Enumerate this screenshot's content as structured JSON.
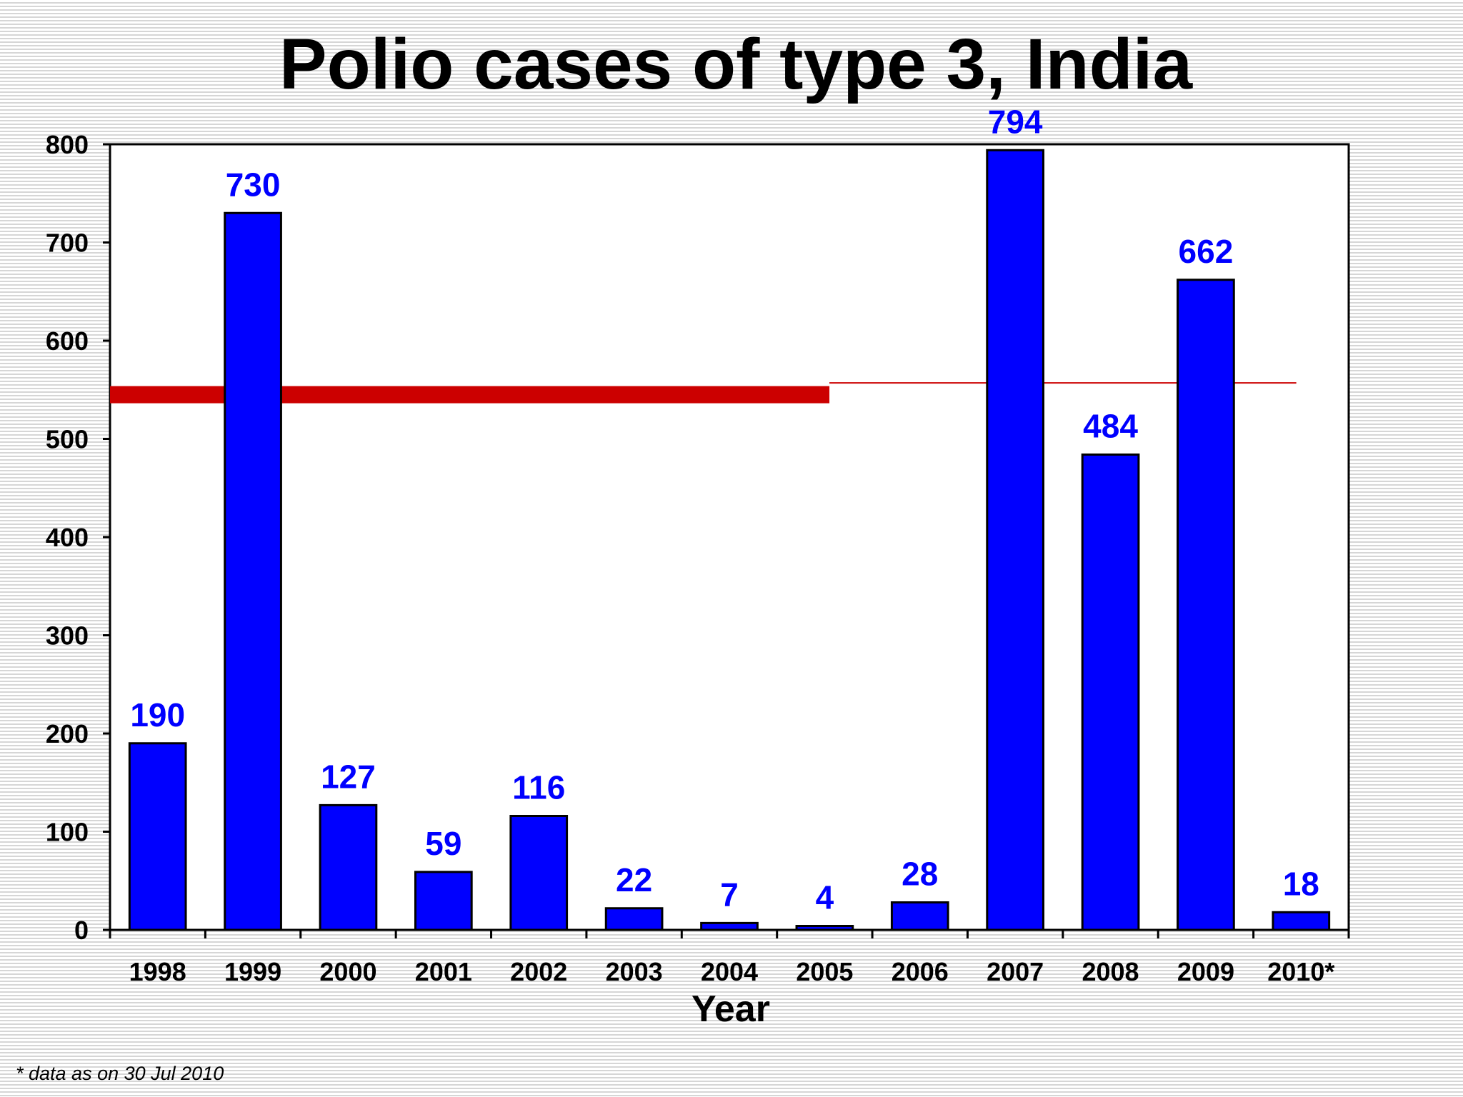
{
  "colors": {
    "bar": "#0000ff",
    "label": "#0000ff",
    "reference_line": "#cc0000",
    "axis": "#000000"
  },
  "chart_data": {
    "type": "bar",
    "title": "Polio cases of type 3, India",
    "xlabel": "Year",
    "ylabel": "",
    "categories": [
      "1998",
      "1999",
      "2000",
      "2001",
      "2002",
      "2003",
      "2004",
      "2005",
      "2006",
      "2007",
      "2008",
      "2009",
      "2010*"
    ],
    "values": [
      190,
      730,
      127,
      59,
      116,
      22,
      7,
      4,
      28,
      794,
      484,
      662,
      18
    ],
    "ylim": [
      0,
      800
    ],
    "yticks": [
      0,
      100,
      200,
      300,
      400,
      500,
      600,
      700,
      800
    ],
    "grid": false,
    "reference_line": {
      "value": 545,
      "thick_through_category": "2005",
      "thin_value": 557
    }
  },
  "footnote": "* data as on 30 Jul 2010"
}
